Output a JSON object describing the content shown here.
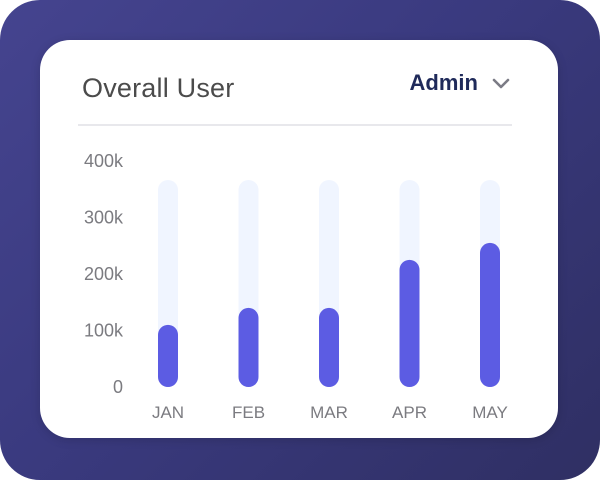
{
  "card": {
    "title": "Overall User",
    "filter_label": "Admin"
  },
  "colors": {
    "frame": "#3a3a7f",
    "bar": "#5c5ce3",
    "track": "#f0f5ff",
    "title": "#4b4b4b",
    "filter": "#1f2a5a"
  },
  "icons": {
    "dropdown": "chevron-down-icon"
  },
  "chart_data": {
    "type": "bar",
    "categories": [
      "JAN",
      "FEB",
      "MAR",
      "APR",
      "MAY"
    ],
    "values": [
      110000,
      140000,
      140000,
      225000,
      255000
    ],
    "ylim": [
      0,
      400000
    ],
    "yticks": [
      0,
      100000,
      200000,
      300000,
      400000
    ],
    "ytick_labels": [
      "0",
      "100k",
      "200k",
      "300k",
      "400k"
    ],
    "title": "",
    "xlabel": "",
    "ylabel": "",
    "grid": false
  }
}
